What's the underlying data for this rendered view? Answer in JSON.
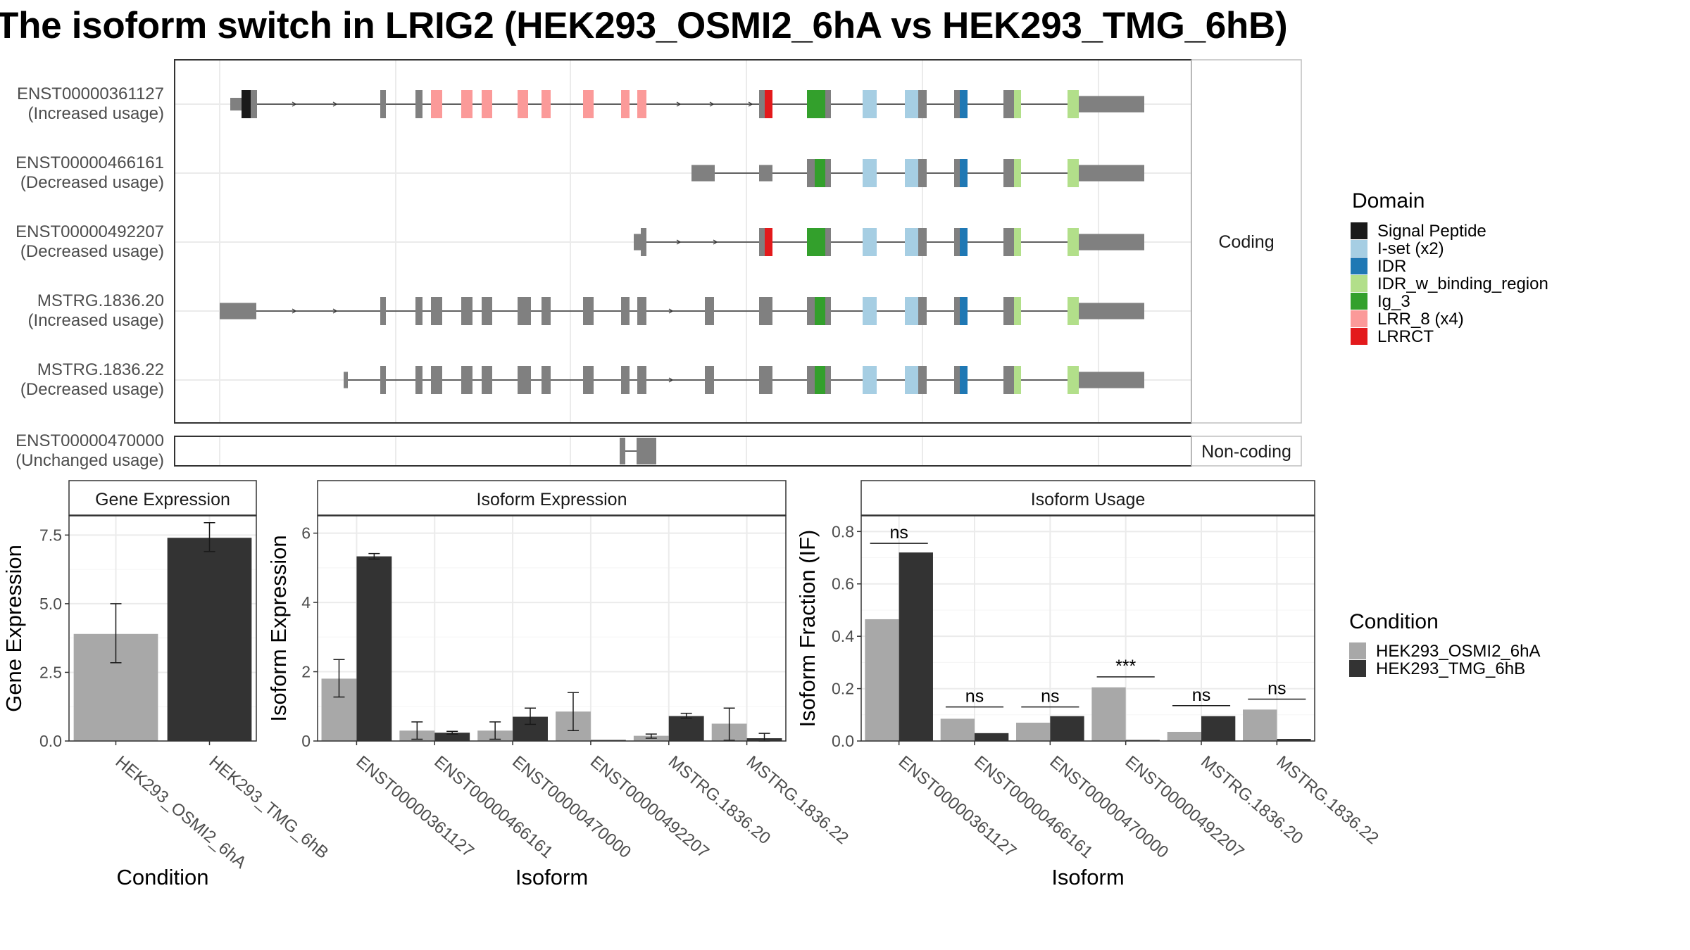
{
  "title": "The isoform switch in LRIG2 (HEK293_OSMI2_6hA vs HEK293_TMG_6hB)",
  "colors": {
    "cond_a": "#a8a8a8",
    "cond_b": "#333333",
    "exon": "#808080",
    "Signal Peptide": "#1a1a1a",
    "I-set (x2)": "#a6cee3",
    "IDR": "#1f78b4",
    "IDR_w_binding_region": "#b2df8a",
    "Ig_3": "#33a02c",
    "LRR_8 (x4)": "#fb9a99",
    "LRRCT": "#e31a1c"
  },
  "structure": {
    "coding_strip": "Coding",
    "noncoding_strip": "Non-coding",
    "coding_transcripts": [
      {
        "id": "ENST00000361127",
        "status": "(Increased usage)"
      },
      {
        "id": "ENST00000466161",
        "status": "(Decreased usage)"
      },
      {
        "id": "ENST00000492207",
        "status": "(Decreased usage)"
      },
      {
        "id": "MSTRG.1836.20",
        "status": "(Increased usage)"
      },
      {
        "id": "MSTRG.1836.22",
        "status": "(Decreased usage)"
      }
    ],
    "noncoding_transcripts": [
      {
        "id": "ENST00000470000",
        "status": "(Unchanged usage)"
      }
    ]
  },
  "legend_domain": {
    "title": "Domain",
    "items": [
      "Signal Peptide",
      "I-set (x2)",
      "IDR",
      "IDR_w_binding_region",
      "Ig_3",
      "LRR_8 (x4)",
      "LRRCT"
    ]
  },
  "legend_condition": {
    "title": "Condition",
    "items": [
      "HEK293_OSMI2_6hA",
      "HEK293_TMG_6hB"
    ]
  },
  "chart_data": [
    {
      "type": "bar",
      "strip": "Gene Expression",
      "xlabel": "Condition",
      "ylabel": "Gene Expression",
      "ylim": [
        0,
        8.2
      ],
      "yticks": [
        0.0,
        2.5,
        5.0,
        7.5
      ],
      "ytick_labels": [
        "0.0",
        "2.5",
        "5.0",
        "7.5"
      ],
      "categories": [
        "HEK293_OSMI2_6hA",
        "HEK293_TMG_6hB"
      ],
      "values": [
        3.9,
        7.4
      ],
      "errors": [
        [
          2.85,
          5.0
        ],
        [
          6.9,
          7.95
        ]
      ],
      "grid": true
    },
    {
      "type": "bar",
      "strip": "Isoform Expression",
      "xlabel": "Isoform",
      "ylabel": "Isoform Expression",
      "ylim": [
        0,
        6.5
      ],
      "yticks": [
        0,
        2,
        4,
        6
      ],
      "ytick_labels": [
        "0",
        "2",
        "4",
        "6"
      ],
      "categories": [
        "ENST00000361127",
        "ENST00000466161",
        "ENST00000470000",
        "ENST00000492207",
        "MSTRG.1836.20",
        "MSTRG.1836.22"
      ],
      "series": [
        {
          "name": "HEK293_OSMI2_6hA",
          "values": [
            1.8,
            0.3,
            0.3,
            0.85,
            0.15,
            0.5
          ],
          "errors": [
            [
              1.27,
              2.35
            ],
            [
              0.05,
              0.55
            ],
            [
              0.05,
              0.55
            ],
            [
              0.3,
              1.4
            ],
            [
              0.08,
              0.2
            ],
            [
              0.02,
              0.95
            ]
          ]
        },
        {
          "name": "HEK293_TMG_6hB",
          "values": [
            5.33,
            0.24,
            0.7,
            0.0,
            0.72,
            0.08
          ],
          "errors": [
            [
              5.25,
              5.41
            ],
            [
              0.2,
              0.28
            ],
            [
              0.48,
              0.95
            ],
            [
              0.0,
              0.0
            ],
            [
              0.66,
              0.8
            ],
            [
              0.0,
              0.22
            ]
          ]
        }
      ],
      "grid": true
    },
    {
      "type": "bar",
      "strip": "Isoform Usage",
      "xlabel": "Isoform",
      "ylabel": "Isoform Fraction (IF)",
      "ylim": [
        0,
        0.86
      ],
      "yticks": [
        0.0,
        0.2,
        0.4,
        0.6,
        0.8
      ],
      "ytick_labels": [
        "0.0",
        "0.2",
        "0.4",
        "0.6",
        "0.8"
      ],
      "categories": [
        "ENST00000361127",
        "ENST00000466161",
        "ENST00000470000",
        "ENST00000492207",
        "MSTRG.1836.20",
        "MSTRG.1836.22"
      ],
      "series": [
        {
          "name": "HEK293_OSMI2_6hA",
          "values": [
            0.465,
            0.085,
            0.07,
            0.205,
            0.035,
            0.12
          ]
        },
        {
          "name": "HEK293_TMG_6hB",
          "values": [
            0.72,
            0.03,
            0.095,
            0.0,
            0.095,
            0.008
          ]
        }
      ],
      "significance": [
        "ns",
        "ns",
        "ns",
        "***",
        "ns",
        "ns"
      ],
      "sig_levels": [
        0.755,
        0.13,
        0.13,
        0.245,
        0.135,
        0.16
      ],
      "grid": true
    }
  ]
}
